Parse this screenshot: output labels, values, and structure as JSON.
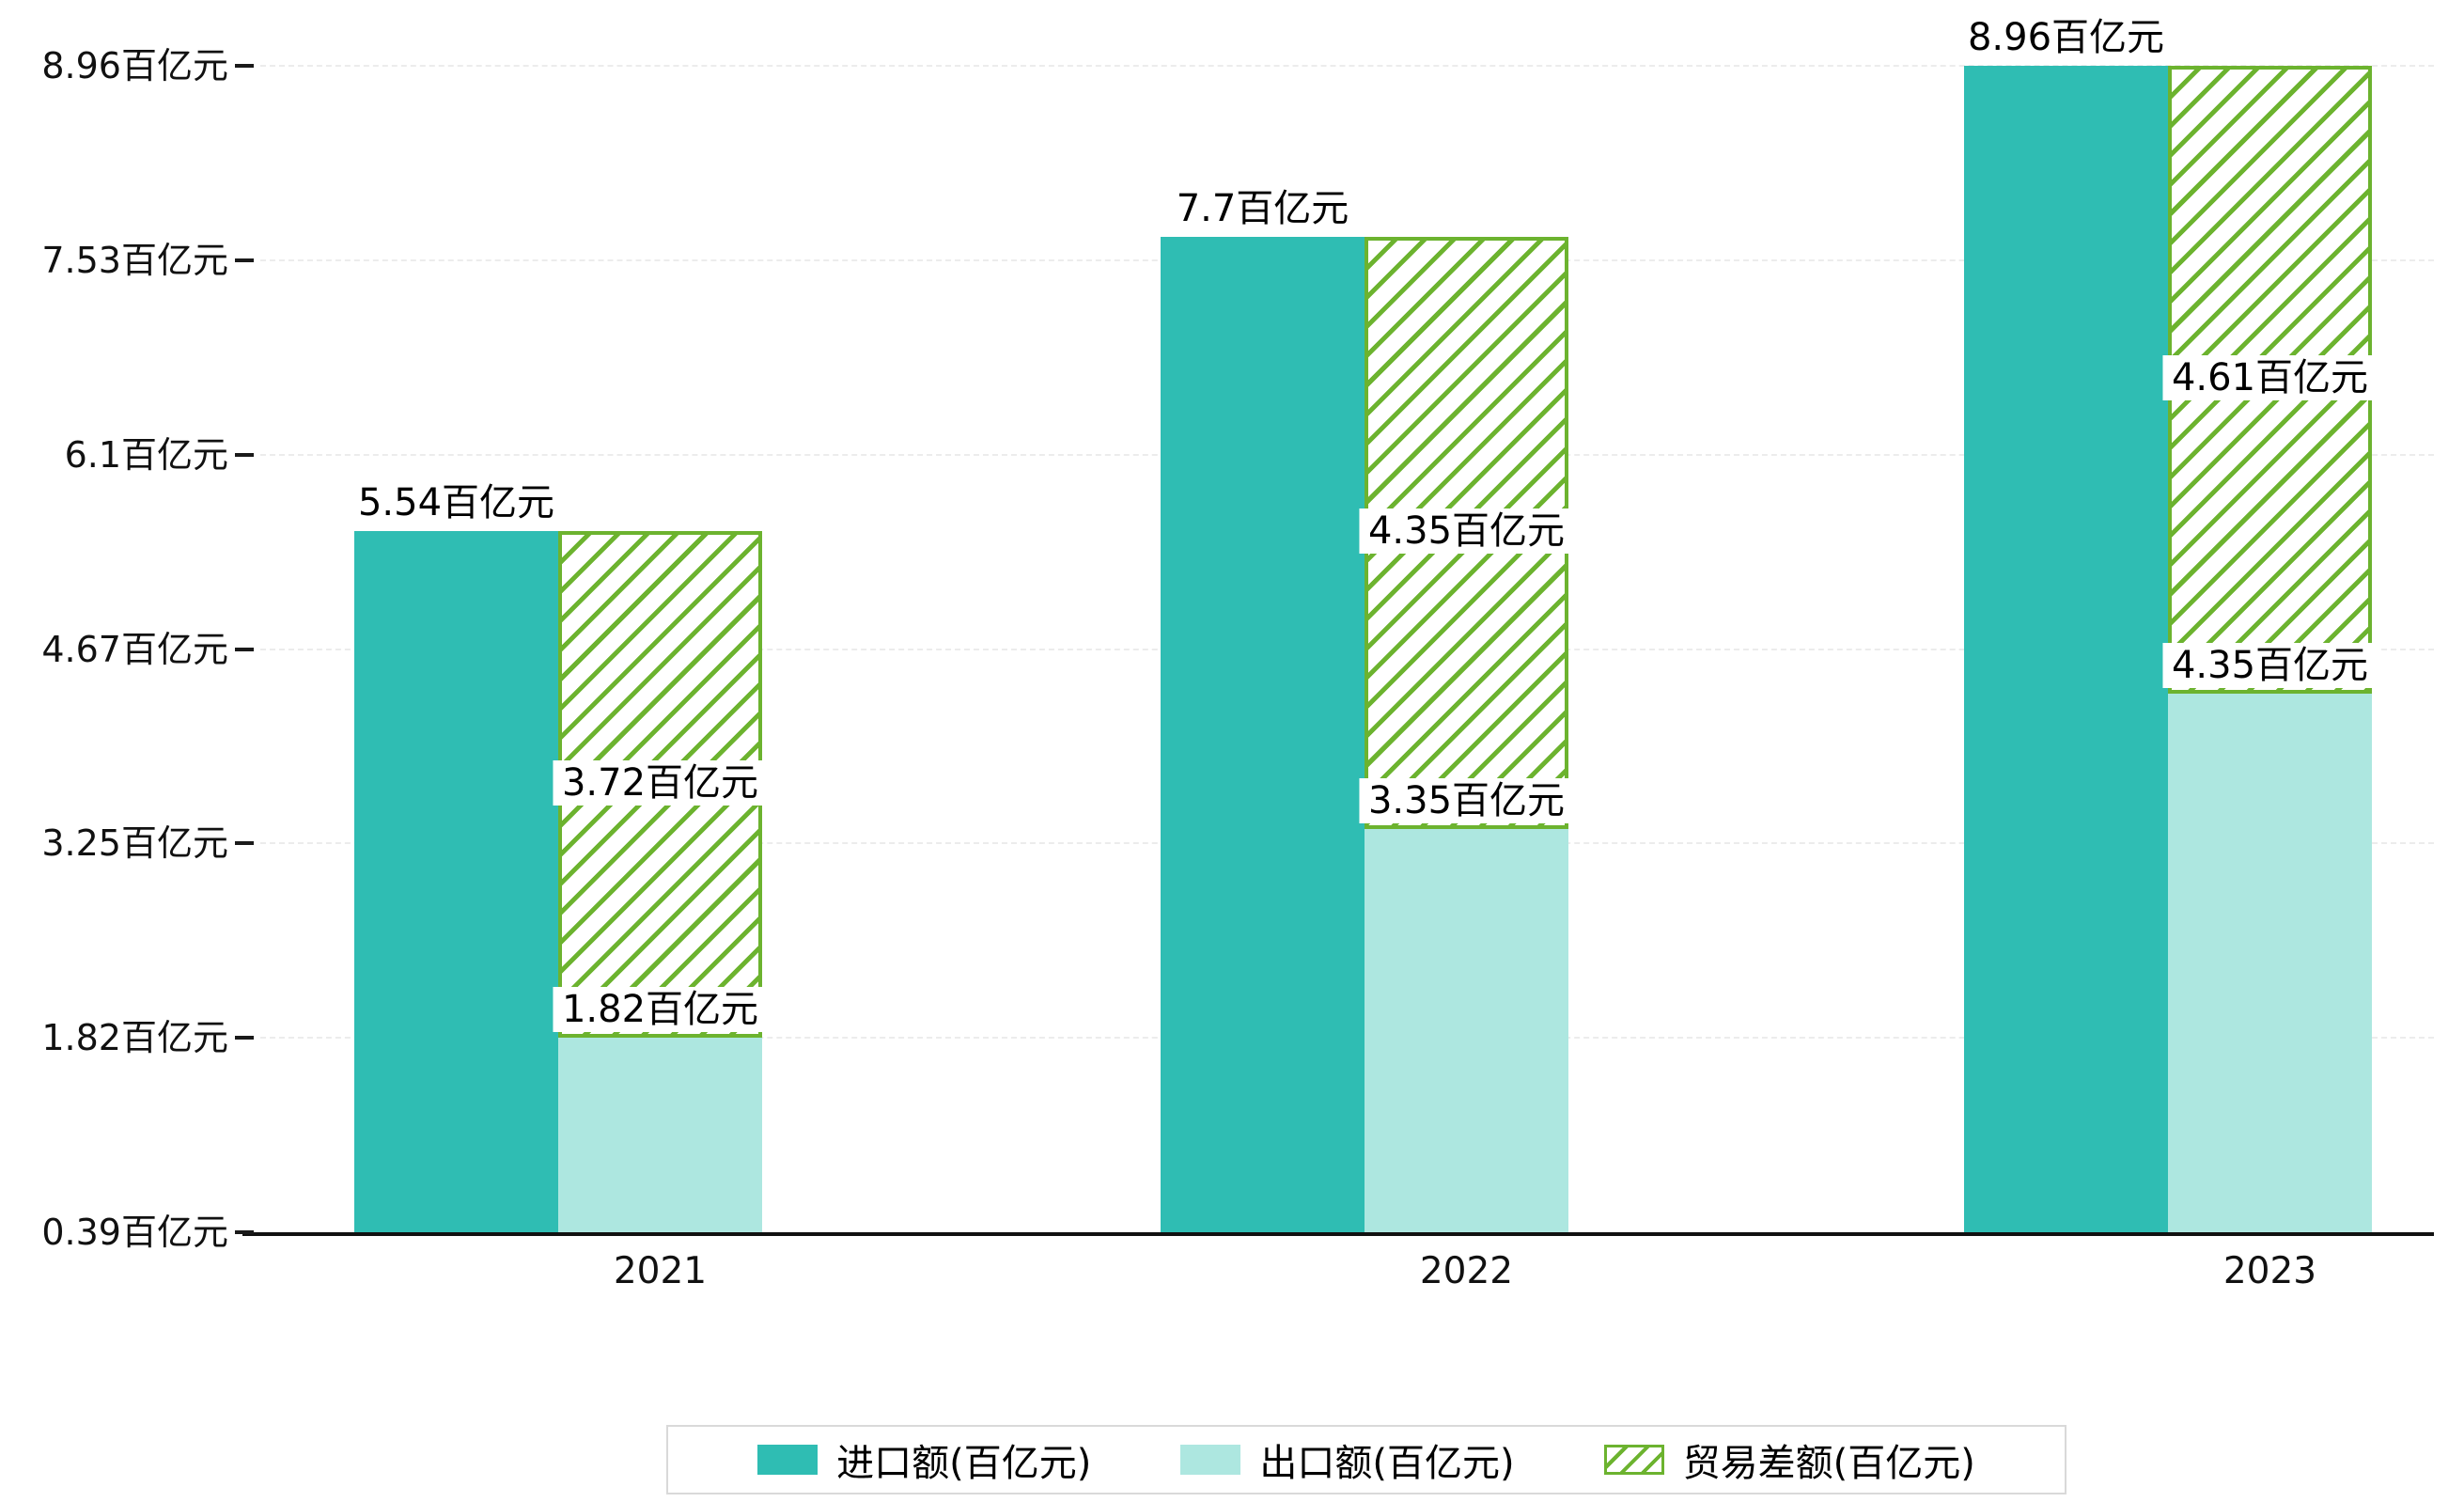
{
  "chart_data": {
    "type": "bar",
    "categories": [
      "2021",
      "2022",
      "2023"
    ],
    "series": [
      {
        "name": "进口额(百亿元)",
        "key": "import",
        "color": "#2fbdb3",
        "pattern": "solid",
        "values": [
          5.54,
          7.7,
          8.96
        ]
      },
      {
        "name": "出口额(百亿元)",
        "key": "export",
        "color": "#ade7e0",
        "pattern": "solid",
        "values": [
          1.82,
          3.35,
          4.35
        ]
      },
      {
        "name": "贸易差额(百亿元)",
        "key": "balance",
        "color": "#6cb32f",
        "pattern": "diagonal-hatch",
        "values": [
          3.72,
          4.35,
          4.61
        ]
      }
    ],
    "bar_labels": {
      "import": [
        "5.54百亿元",
        "7.7百亿元",
        "8.96百亿元"
      ],
      "export": [
        "1.82百亿元",
        "3.35百亿元",
        "4.35百亿元"
      ],
      "balance": [
        "3.72百亿元",
        "4.35百亿元",
        "4.61百亿元"
      ]
    },
    "y_axis": {
      "tick_values": [
        0.39,
        1.82,
        3.25,
        4.67,
        6.1,
        7.53,
        8.96
      ],
      "tick_labels": [
        "0.39百亿元",
        "1.82百亿元",
        "3.25百亿元",
        "4.67百亿元",
        "6.1百亿元",
        "7.53百亿元",
        "8.96百亿元"
      ]
    },
    "x_axis": {
      "tick_labels": [
        "2021",
        "2022",
        "2023"
      ]
    },
    "ylim": [
      0.39,
      9.17
    ],
    "grid": true,
    "legend_position": "bottom"
  }
}
